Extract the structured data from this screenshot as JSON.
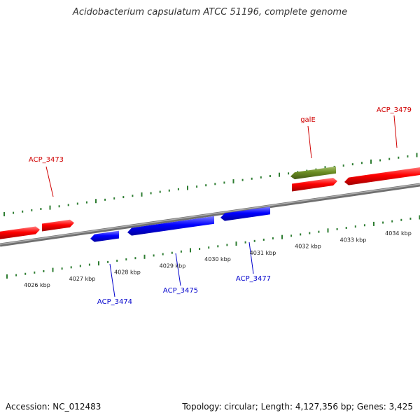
{
  "title": "Acidobacterium capsulatum ATCC 51196, complete genome",
  "footer": {
    "accession": "Accession: NC_012483",
    "summary": "Topology: circular; Length: 4,127,356 bp; Genes: 3,425"
  },
  "colors": {
    "forward_gene": "#ff0000",
    "reverse_gene": "#0000ff",
    "rna_gene": "#6b8e23",
    "backbone": "#808080",
    "ticks": "#2e7d32"
  },
  "scale_labels": [
    "4026 kbp",
    "4027 kbp",
    "4028 kbp",
    "4029 kbp",
    "4030 kbp",
    "4031 kbp",
    "4032 kbp",
    "4033 kbp",
    "4034 kbp"
  ],
  "gene_labels": [
    {
      "name": "ACP_3473",
      "strand": "forward"
    },
    {
      "name": "galE",
      "strand": "forward"
    },
    {
      "name": "ACP_3479",
      "strand": "forward"
    },
    {
      "name": "ACP_3474",
      "strand": "reverse"
    },
    {
      "name": "ACP_3475",
      "strand": "reverse"
    },
    {
      "name": "ACP_3477",
      "strand": "reverse"
    }
  ]
}
